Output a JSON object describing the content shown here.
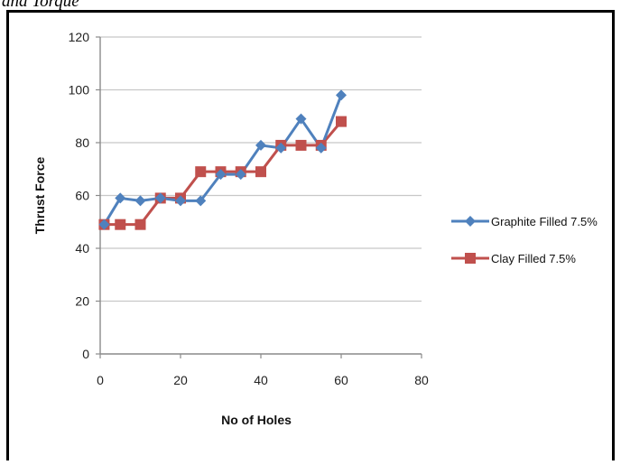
{
  "caption_fragment": "and Torque",
  "colors": {
    "graphite": "#4f81bd",
    "clay": "#c0504d",
    "grid": "#c8c8c8",
    "axis": "#8a8a8a"
  },
  "chart_data": {
    "type": "line",
    "title": "",
    "xlabel": "No of Holes",
    "ylabel": "Thrust Force",
    "xlim": [
      0,
      80
    ],
    "ylim": [
      0,
      120
    ],
    "xticks": [
      0,
      20,
      40,
      60,
      80
    ],
    "yticks": [
      0,
      20,
      40,
      60,
      80,
      100,
      120
    ],
    "grid": "horizontal",
    "legend_position": "right",
    "series": [
      {
        "name": "Graphite Filled 7.5%",
        "marker": "diamond",
        "color": "#4f81bd",
        "points": [
          [
            1,
            49
          ],
          [
            5,
            59
          ],
          [
            10,
            58
          ],
          [
            15,
            59
          ],
          [
            20,
            58
          ],
          [
            25,
            58
          ],
          [
            30,
            68
          ],
          [
            35,
            68
          ],
          [
            40,
            79
          ],
          [
            45,
            78
          ],
          [
            50,
            89
          ],
          [
            55,
            78
          ],
          [
            60,
            98
          ]
        ]
      },
      {
        "name": "Clay Filled 7.5%",
        "marker": "square",
        "color": "#c0504d",
        "points": [
          [
            1,
            49
          ],
          [
            5,
            49
          ],
          [
            10,
            49
          ],
          [
            15,
            59
          ],
          [
            20,
            59
          ],
          [
            25,
            69
          ],
          [
            30,
            69
          ],
          [
            35,
            69
          ],
          [
            40,
            69
          ],
          [
            45,
            79
          ],
          [
            50,
            79
          ],
          [
            55,
            79
          ],
          [
            60,
            88
          ]
        ]
      }
    ]
  }
}
